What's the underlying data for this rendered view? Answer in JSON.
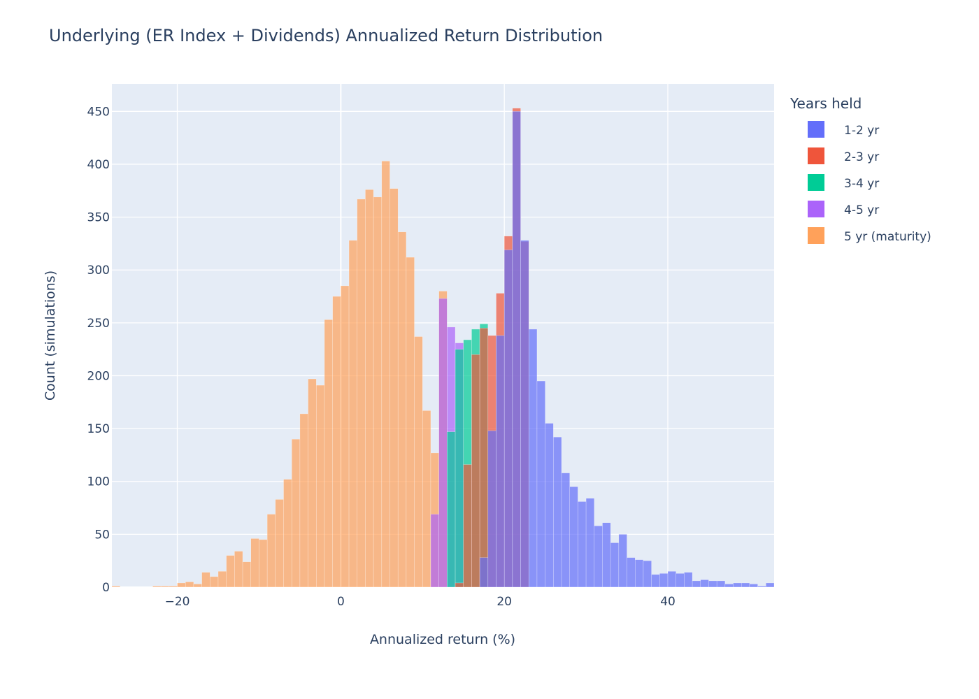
{
  "chart_data": {
    "type": "bar",
    "title": "Underlying (ER Index + Dividends) Annualized Return Distribution",
    "xlabel": "Annualized return (%)",
    "ylabel": "Count (simulations)",
    "xlim": [
      -28,
      53
    ],
    "ylim": [
      0,
      476
    ],
    "x_ticks": [
      -20,
      0,
      20,
      40
    ],
    "x_tick_labels": [
      "−20",
      "0",
      "20",
      "40"
    ],
    "y_ticks": [
      0,
      50,
      100,
      150,
      200,
      250,
      300,
      350,
      400,
      450
    ],
    "grid": true,
    "legend_title": "Years held",
    "legend_position": "right",
    "barmode": "overlay",
    "bar_opacity": 0.7,
    "series": [
      {
        "name": "5 yr (maturity)",
        "color": "#FFA15A",
        "bin_width": 1.0,
        "bins": [
          [
            -27.5,
            1
          ],
          [
            -26.5,
            0
          ],
          [
            -25.5,
            0
          ],
          [
            -24.5,
            0
          ],
          [
            -23.5,
            0
          ],
          [
            -22.5,
            1
          ],
          [
            -21.5,
            1
          ],
          [
            -20.5,
            1
          ],
          [
            -19.5,
            4
          ],
          [
            -18.5,
            5
          ],
          [
            -17.5,
            3
          ],
          [
            -16.5,
            14
          ],
          [
            -15.5,
            10
          ],
          [
            -14.5,
            15
          ],
          [
            -13.5,
            30
          ],
          [
            -12.5,
            34
          ],
          [
            -11.5,
            24
          ],
          [
            -10.5,
            46
          ],
          [
            -9.5,
            45
          ],
          [
            -8.5,
            69
          ],
          [
            -7.5,
            83
          ],
          [
            -6.5,
            102
          ],
          [
            -5.5,
            140
          ],
          [
            -4.5,
            164
          ],
          [
            -3.5,
            197
          ],
          [
            -2.5,
            191
          ],
          [
            -1.5,
            253
          ],
          [
            -0.5,
            275
          ],
          [
            0.5,
            285
          ],
          [
            1.5,
            328
          ],
          [
            2.5,
            367
          ],
          [
            3.5,
            376
          ],
          [
            4.5,
            369
          ],
          [
            5.5,
            403
          ],
          [
            6.5,
            377
          ],
          [
            7.5,
            336
          ],
          [
            8.5,
            312
          ],
          [
            9.5,
            237
          ],
          [
            10.5,
            167
          ],
          [
            11.5,
            127
          ],
          [
            12.5,
            280
          ]
        ]
      },
      {
        "name": "4-5 yr",
        "color": "#AB63FA",
        "bin_width": 1.0,
        "bins": [
          [
            11.5,
            69
          ],
          [
            12.5,
            273
          ],
          [
            13.5,
            246
          ],
          [
            14.5,
            231
          ]
        ]
      },
      {
        "name": "3-4 yr",
        "color": "#00CC96",
        "bin_width": 1.0,
        "bins": [
          [
            13.5,
            147
          ],
          [
            14.5,
            225
          ],
          [
            15.5,
            234
          ],
          [
            16.5,
            244
          ],
          [
            17.5,
            249
          ]
        ]
      },
      {
        "name": "2-3 yr",
        "color": "#EF553B",
        "bin_width": 1.0,
        "bins": [
          [
            14.5,
            4
          ],
          [
            15.5,
            116
          ],
          [
            16.5,
            220
          ],
          [
            17.5,
            245
          ],
          [
            18.5,
            238
          ],
          [
            19.5,
            278
          ],
          [
            20.5,
            332
          ],
          [
            21.5,
            453
          ],
          [
            22.5,
            327
          ]
        ]
      },
      {
        "name": "1-2 yr",
        "color": "#636EFA",
        "bin_width": 1.0,
        "bins": [
          [
            17.5,
            28
          ],
          [
            18.5,
            148
          ],
          [
            19.5,
            238
          ],
          [
            20.5,
            319
          ],
          [
            21.5,
            450
          ],
          [
            22.5,
            328
          ],
          [
            23.5,
            244
          ],
          [
            24.5,
            195
          ],
          [
            25.5,
            155
          ],
          [
            26.5,
            142
          ],
          [
            27.5,
            108
          ],
          [
            28.5,
            95
          ],
          [
            29.5,
            81
          ],
          [
            30.5,
            84
          ],
          [
            31.5,
            58
          ],
          [
            32.5,
            61
          ],
          [
            33.5,
            42
          ],
          [
            34.5,
            50
          ],
          [
            35.5,
            28
          ],
          [
            36.5,
            26
          ],
          [
            37.5,
            25
          ],
          [
            38.5,
            12
          ],
          [
            39.5,
            13
          ],
          [
            40.5,
            15
          ],
          [
            41.5,
            13
          ],
          [
            42.5,
            14
          ],
          [
            43.5,
            6
          ],
          [
            44.5,
            7
          ],
          [
            45.5,
            6
          ],
          [
            46.5,
            6
          ],
          [
            47.5,
            3
          ],
          [
            48.5,
            4
          ],
          [
            49.5,
            4
          ],
          [
            50.5,
            3
          ],
          [
            51.5,
            1
          ],
          [
            52.5,
            4
          ]
        ]
      }
    ],
    "legend_order": [
      "1-2 yr",
      "2-3 yr",
      "3-4 yr",
      "4-5 yr",
      "5 yr (maturity)"
    ]
  },
  "colors": {
    "plot_background": "#E5ECF6",
    "grid": "#FFFFFF",
    "text": "#2a3f5f"
  }
}
